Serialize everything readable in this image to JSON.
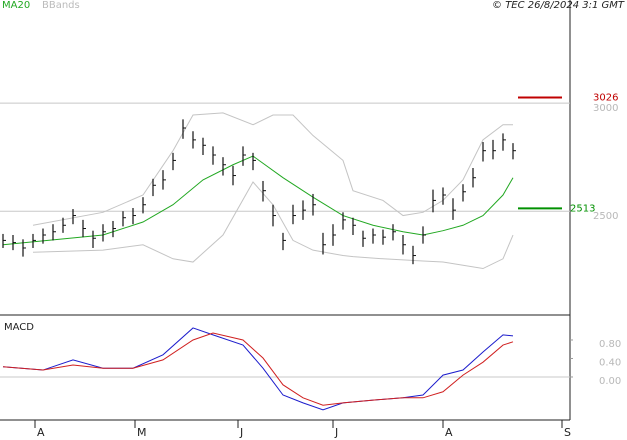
{
  "chart_data": [
    {
      "type": "ohlc",
      "source": "© TEC 26/8/2024 3:1 GMT",
      "color": "#111111",
      "x": [
        0,
        1,
        2,
        3,
        4,
        5,
        6,
        7,
        8,
        9,
        10,
        11,
        12,
        13,
        14,
        15,
        16,
        17,
        18,
        19,
        20,
        21,
        22,
        23,
        24,
        25,
        26,
        27,
        28,
        29,
        30,
        31,
        32,
        33,
        34,
        35,
        36,
        37,
        38,
        39,
        40,
        41,
        42,
        43,
        44,
        45,
        46,
        47,
        48,
        49,
        50,
        51
      ],
      "high": [
        2395,
        2390,
        2370,
        2395,
        2420,
        2440,
        2470,
        2510,
        2460,
        2410,
        2440,
        2455,
        2500,
        2515,
        2565,
        2650,
        2690,
        2770,
        2925,
        2870,
        2840,
        2800,
        2750,
        2710,
        2800,
        2770,
        2640,
        2530,
        2400,
        2530,
        2550,
        2580,
        2400,
        2440,
        2495,
        2470,
        2410,
        2420,
        2415,
        2440,
        2390,
        2340,
        2430,
        2600,
        2610,
        2560,
        2625,
        2700,
        2820,
        2830,
        2860,
        2815
      ],
      "low": [
        2330,
        2320,
        2290,
        2330,
        2350,
        2365,
        2400,
        2440,
        2380,
        2330,
        2360,
        2380,
        2430,
        2440,
        2490,
        2570,
        2600,
        2690,
        2835,
        2790,
        2760,
        2715,
        2665,
        2620,
        2710,
        2690,
        2545,
        2430,
        2320,
        2440,
        2460,
        2480,
        2300,
        2340,
        2415,
        2390,
        2335,
        2350,
        2345,
        2365,
        2300,
        2255,
        2350,
        2495,
        2530,
        2460,
        2545,
        2610,
        2730,
        2740,
        2780,
        2740
      ],
      "close": [
        2365,
        2355,
        2330,
        2365,
        2390,
        2405,
        2435,
        2480,
        2420,
        2375,
        2405,
        2420,
        2470,
        2480,
        2530,
        2620,
        2645,
        2735,
        2885,
        2830,
        2805,
        2760,
        2715,
        2665,
        2760,
        2735,
        2595,
        2480,
        2365,
        2480,
        2505,
        2530,
        2345,
        2390,
        2460,
        2435,
        2375,
        2390,
        2380,
        2405,
        2345,
        2295,
        2390,
        2550,
        2575,
        2505,
        2590,
        2655,
        2780,
        2780,
        2830,
        2780
      ],
      "ma": {
        "name": "MA20",
        "color": "#22a822",
        "x": [
          0,
          10,
          14,
          17,
          20,
          23,
          25,
          28,
          31,
          34,
          37,
          40,
          42,
          44,
          46,
          48,
          50,
          51
        ],
        "values": [
          2345,
          2390,
          2450,
          2530,
          2645,
          2715,
          2755,
          2655,
          2565,
          2480,
          2435,
          2405,
          2390,
          2410,
          2435,
          2480,
          2575,
          2655
        ]
      },
      "bands": {
        "name": "BBands",
        "color": "#c4c4c4",
        "x": [
          3,
          10,
          14,
          17,
          19,
          22,
          25,
          27,
          29,
          31,
          34,
          35,
          38,
          40,
          42,
          44,
          46,
          48,
          50,
          51
        ],
        "upper": [
          2435,
          2495,
          2575,
          2780,
          2945,
          2955,
          2900,
          2945,
          2945,
          2850,
          2735,
          2595,
          2550,
          2480,
          2495,
          2550,
          2645,
          2830,
          2900,
          2900
        ],
        "lower": [
          2310,
          2320,
          2345,
          2280,
          2265,
          2390,
          2635,
          2530,
          2365,
          2320,
          2295,
          2290,
          2280,
          2275,
          2270,
          2265,
          2250,
          2235,
          2280,
          2390
        ]
      },
      "levels": [
        {
          "value": 3026,
          "color": "#c00000"
        },
        {
          "value": 2513,
          "color": "#009000"
        }
      ],
      "xlim": [
        -0.3,
        56.7
      ],
      "ylim": [
        2020,
        3440
      ],
      "yticks": [
        2500,
        3000
      ],
      "grid": true
    },
    {
      "type": "line",
      "title": "MACD",
      "xlim": [
        -0.3,
        56.7
      ],
      "ylim": [
        -0.93,
        1.34
      ],
      "yticks": [
        {
          "value": 0,
          "label": "0.00"
        },
        {
          "value": 0.4,
          "label": "0.40"
        },
        {
          "value": 0.8,
          "label": "0.80"
        }
      ],
      "zero_line": true,
      "xticks": [
        {
          "value": 3.2,
          "label": "A"
        },
        {
          "value": 13.2,
          "label": "M"
        },
        {
          "value": 23.5,
          "label": "J"
        },
        {
          "value": 33,
          "label": "J"
        },
        {
          "value": 44,
          "label": "A"
        },
        {
          "value": 55.9,
          "label": "S"
        }
      ],
      "series": [
        {
          "color": "#1c1ccc",
          "x": [
            0,
            4,
            7,
            10,
            13,
            16,
            19,
            21,
            24,
            26,
            28,
            30,
            32,
            34,
            37,
            40,
            42,
            44,
            46,
            48,
            50,
            51
          ],
          "values": [
            0.22,
            0.15,
            0.37,
            0.19,
            0.19,
            0.48,
            1.06,
            0.91,
            0.69,
            0.19,
            -0.39,
            -0.56,
            -0.71,
            -0.56,
            -0.5,
            -0.45,
            -0.39,
            0.04,
            0.15,
            0.54,
            0.91,
            0.89
          ]
        },
        {
          "color": "#d02020",
          "x": [
            0,
            4,
            7,
            10,
            13,
            16,
            19,
            21,
            24,
            26,
            28,
            30,
            32,
            34,
            37,
            40,
            42,
            44,
            46,
            48,
            50,
            51
          ],
          "values": [
            0.22,
            0.15,
            0.26,
            0.19,
            0.19,
            0.37,
            0.8,
            0.95,
            0.8,
            0.41,
            -0.17,
            -0.45,
            -0.61,
            -0.56,
            -0.5,
            -0.45,
            -0.45,
            -0.32,
            0.04,
            0.32,
            0.69,
            0.76
          ]
        }
      ]
    }
  ]
}
